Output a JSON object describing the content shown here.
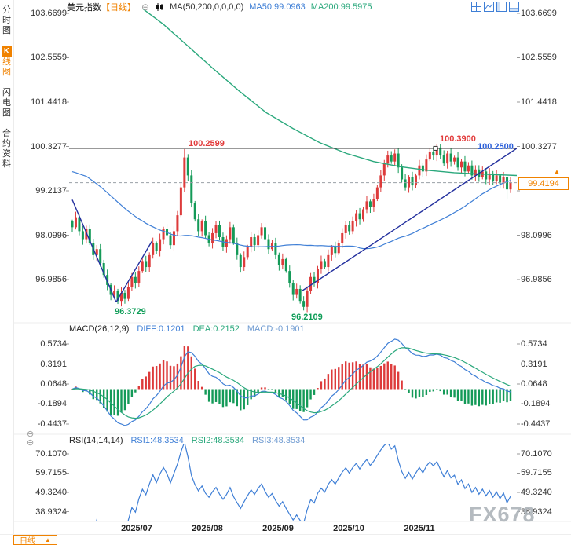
{
  "sidebar": {
    "tabs": [
      {
        "badge": "",
        "label": "分时图"
      },
      {
        "badge": "K",
        "label": "线图"
      },
      {
        "badge": "",
        "label": "闪电图"
      },
      {
        "badge": "",
        "label": "合约资料"
      }
    ]
  },
  "header": {
    "symbol": "美元指数",
    "period": "【日线】",
    "collapse_icon": "⊖",
    "ma_label": "MA(50,200,0,0,0,0)",
    "ma50": "MA50:99.0963",
    "ma200": "MA200:99.5975"
  },
  "main_axis": {
    "labels": [
      "103.6699",
      "102.5559",
      "101.4418",
      "100.3277",
      "99.2137",
      "98.0996",
      "96.9856"
    ]
  },
  "annotations": {
    "swing_high_july": "100.2599",
    "swing_high_nov": "100.3900",
    "trendline_price": "100.2500",
    "swing_low_july": "96.3729",
    "swing_low_sep": "96.2109",
    "last_price": "99.4194",
    "triangle_up": "▲"
  },
  "macd": {
    "title": "MACD(26,12,9)",
    "diff": "DIFF:0.1201",
    "dea": "DEA:0.2152",
    "macd": "MACD:-0.1901",
    "axis": [
      "0.5734",
      "0.3191",
      "0.0648",
      "-0.1894",
      "-0.4437"
    ]
  },
  "rsi": {
    "title": "RSI(14,14,14)",
    "rsi1": "RSI1:48.3534",
    "rsi2": "RSI2:48.3534",
    "rsi3": "RSI3:48.3534",
    "axis": [
      "70.1070",
      "59.7155",
      "49.3240",
      "38.9324"
    ]
  },
  "xaxis": {
    "labels": [
      "2025/07",
      "2025/08",
      "2025/09",
      "2025/10",
      "2025/11"
    ]
  },
  "bottom": {
    "tab": "日线",
    "triangle": "▲"
  },
  "panel_icons": {
    "collapse_macd": "⊖",
    "collapse_rsi": "⊖"
  },
  "watermark": "FX678",
  "colors": {
    "up": "#dd3b3b",
    "down": "#149a58",
    "ma50": "#3f7fd6",
    "ma200": "#2aa87c",
    "trend": "#222f9e",
    "accent_orange": "#f08200",
    "annotation_red": "#e23b3b",
    "annotation_green": "#0f9d58",
    "annotation_blue": "#2b5fd9"
  },
  "chart_data": {
    "type": "candlestick",
    "title": "美元指数 日线",
    "price_axis_ticks": [
      103.6699,
      102.5559,
      101.4418,
      100.3277,
      99.2137,
      98.0996,
      96.9856
    ],
    "macd_axis_ticks": [
      0.5734,
      0.3191,
      0.0648,
      -0.1894,
      -0.4437
    ],
    "rsi_axis_ticks": [
      70.107,
      59.7155,
      49.324,
      38.9324
    ],
    "x_labels": [
      "2025/07",
      "2025/08",
      "2025/09",
      "2025/10",
      "2025/11"
    ],
    "first_open": 98.45,
    "closes": [
      98.3,
      98.55,
      98.2,
      98.0,
      98.25,
      97.9,
      97.6,
      97.75,
      97.4,
      97.1,
      96.85,
      96.6,
      96.7,
      96.45,
      96.65,
      96.5,
      96.8,
      97.05,
      96.9,
      97.2,
      97.45,
      97.3,
      97.6,
      97.9,
      97.7,
      98.0,
      98.25,
      98.1,
      97.85,
      98.2,
      98.6,
      99.3,
      100.05,
      99.6,
      98.9,
      98.5,
      98.2,
      98.45,
      98.1,
      97.9,
      98.15,
      98.35,
      98.05,
      97.8,
      98.0,
      98.3,
      97.9,
      97.6,
      97.3,
      97.55,
      97.8,
      98.05,
      97.85,
      98.1,
      98.3,
      98.0,
      97.75,
      97.9,
      97.6,
      97.35,
      97.5,
      97.2,
      96.9,
      96.6,
      96.75,
      96.45,
      96.3,
      96.7,
      97.05,
      96.9,
      97.25,
      97.45,
      97.3,
      97.6,
      97.8,
      97.65,
      97.9,
      98.15,
      98.35,
      98.2,
      98.45,
      98.65,
      98.5,
      98.75,
      98.95,
      98.8,
      99.0,
      99.3,
      99.6,
      99.9,
      100.1,
      99.95,
      100.15,
      99.8,
      99.5,
      99.3,
      99.55,
      99.35,
      99.6,
      99.85,
      99.7,
      100.0,
      100.2,
      100.1,
      100.3,
      100.1,
      99.9,
      100.15,
      99.95,
      100.05,
      99.8,
      99.95,
      99.7,
      99.85,
      99.6,
      99.75,
      99.55,
      99.7,
      99.5,
      99.65,
      99.45,
      99.6,
      99.4,
      99.55,
      99.25,
      99.4194
    ],
    "wick_overrides": {
      "13": {
        "low": 96.3729
      },
      "32": {
        "high": 100.2599
      },
      "66": {
        "low": 96.2109
      },
      "104": {
        "high": 100.39
      },
      "124": {
        "low": 99.02
      }
    },
    "ma200_points": [
      [
        0.165,
        103.78
      ],
      [
        0.21,
        103.4
      ],
      [
        0.26,
        102.9
      ],
      [
        0.32,
        102.3
      ],
      [
        0.38,
        101.72
      ],
      [
        0.44,
        101.18
      ],
      [
        0.5,
        100.78
      ],
      [
        0.56,
        100.42
      ],
      [
        0.62,
        100.15
      ],
      [
        0.68,
        99.95
      ],
      [
        0.74,
        99.82
      ],
      [
        0.8,
        99.73
      ],
      [
        0.86,
        99.67
      ],
      [
        0.93,
        99.63
      ],
      [
        1.0,
        99.5975
      ]
    ],
    "trendlines": [
      [
        0.007,
        98.99,
        0.105,
        96.42
      ],
      [
        0.105,
        96.42,
        0.185,
        97.95
      ],
      [
        0.52,
        96.7,
        1.0,
        100.28
      ]
    ],
    "horizontal_line_price": 100.28,
    "last_price": 99.4194,
    "indicators": {
      "ma50": 99.0963,
      "ma200": 99.5975,
      "diff": 0.1201,
      "dea": 0.2152,
      "macd": -0.1901,
      "rsi1": 48.3534,
      "rsi2": 48.3534,
      "rsi3": 48.3534
    },
    "swing_points": {
      "high_jul": 100.2599,
      "high_nov": 100.39,
      "low_jul": 96.3729,
      "low_sep": 96.2109,
      "trendline_right_price": 100.25
    }
  }
}
